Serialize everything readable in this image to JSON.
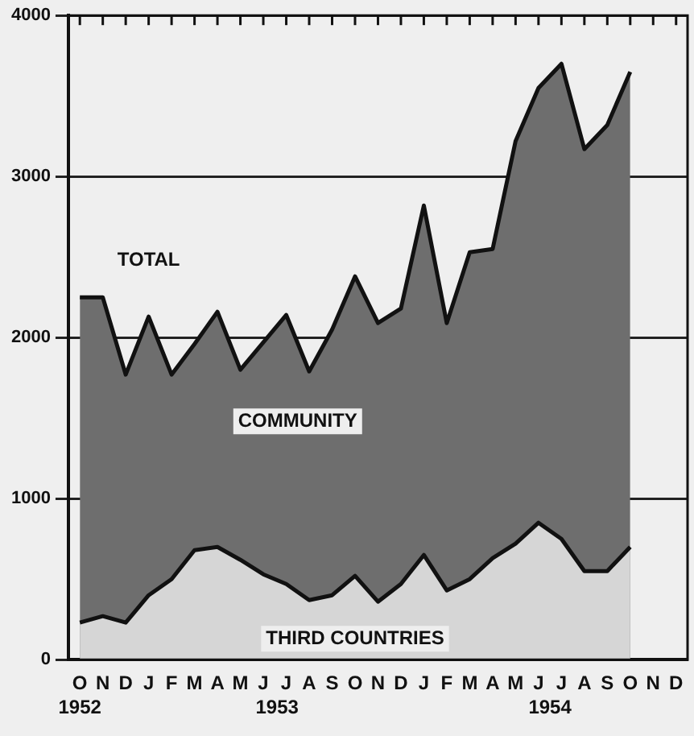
{
  "chart_data": {
    "type": "area",
    "categories": [
      "O",
      "N",
      "D",
      "J",
      "F",
      "M",
      "A",
      "M",
      "J",
      "J",
      "A",
      "S",
      "O",
      "N",
      "D",
      "J",
      "F",
      "M",
      "A",
      "M",
      "J",
      "J",
      "A",
      "S",
      "O",
      "N",
      "D"
    ],
    "series": [
      {
        "name": "TOTAL",
        "color": "#6e6e6e",
        "values": [
          2250,
          2250,
          1770,
          2130,
          1770,
          1960,
          2160,
          1800,
          1970,
          2140,
          1790,
          2050,
          2380,
          2090,
          2180,
          2820,
          2090,
          2530,
          2550,
          3220,
          3550,
          3700,
          3170,
          3320,
          3650,
          null,
          null
        ]
      },
      {
        "name": "THIRD COUNTRIES",
        "color": "#d6d6d6",
        "values": [
          230,
          270,
          230,
          400,
          500,
          680,
          700,
          620,
          530,
          470,
          370,
          400,
          520,
          360,
          470,
          650,
          430,
          500,
          630,
          720,
          850,
          750,
          550,
          550,
          700,
          null,
          null
        ]
      }
    ],
    "annotations": [
      "COMMUNITY",
      "1952",
      "1953",
      "1954"
    ],
    "ylim": [
      0,
      4000
    ],
    "yticks": [
      0,
      1000,
      2000,
      3000,
      4000
    ],
    "grid": "y",
    "legend": false
  }
}
